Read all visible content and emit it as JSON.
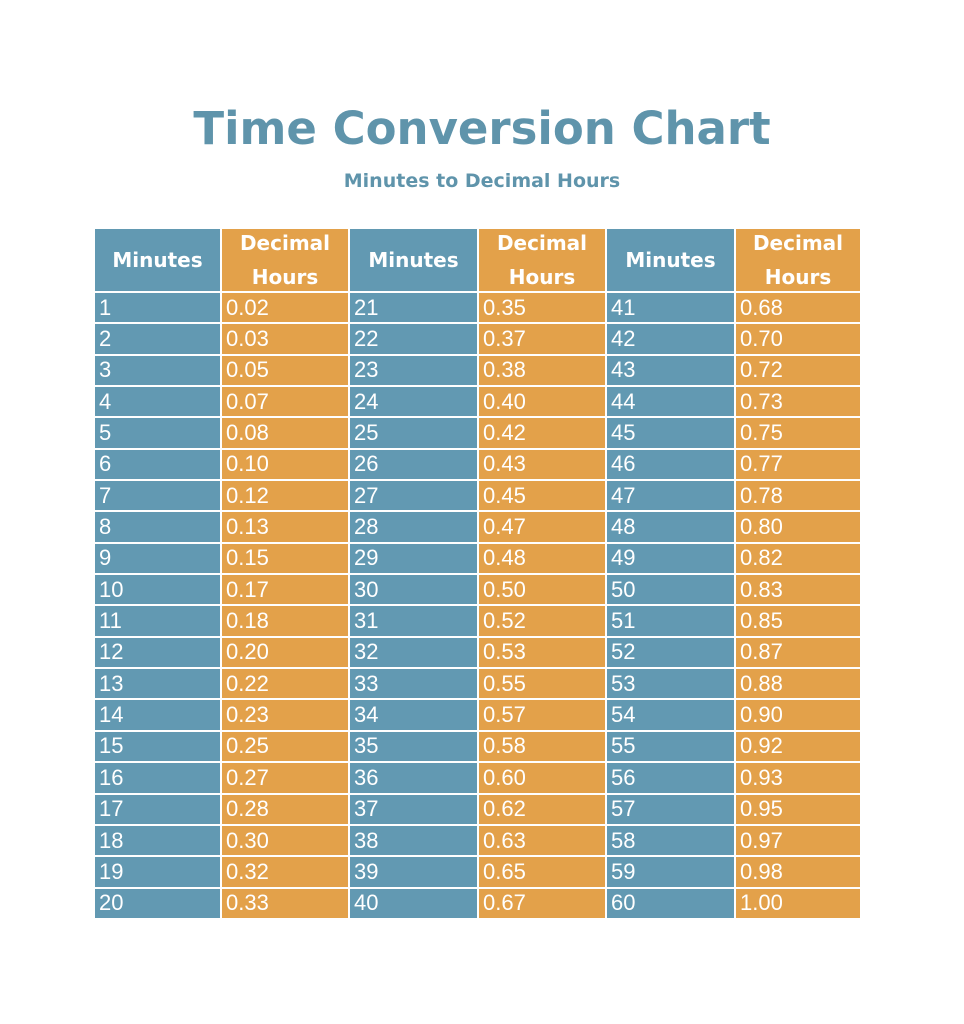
{
  "title": "Time Conversion Chart",
  "subtitle": "Minutes to Decimal Hours",
  "colors": {
    "title": "#5f94ab",
    "minutes_column": "#6299b2",
    "decimal_column": "#e3a14a",
    "text_on_cells": "#ffffff"
  },
  "headers": {
    "minutes": "Minutes",
    "decimal_line1": "Decimal",
    "decimal_line2": "Hours"
  },
  "table": [
    {
      "minutes": "1",
      "hours": "0.02"
    },
    {
      "minutes": "2",
      "hours": "0.03"
    },
    {
      "minutes": "3",
      "hours": "0.05"
    },
    {
      "minutes": "4",
      "hours": "0.07"
    },
    {
      "minutes": "5",
      "hours": "0.08"
    },
    {
      "minutes": "6",
      "hours": "0.10"
    },
    {
      "minutes": "7",
      "hours": "0.12"
    },
    {
      "minutes": "8",
      "hours": "0.13"
    },
    {
      "minutes": "9",
      "hours": "0.15"
    },
    {
      "minutes": "10",
      "hours": "0.17"
    },
    {
      "minutes": "11",
      "hours": "0.18"
    },
    {
      "minutes": "12",
      "hours": "0.20"
    },
    {
      "minutes": "13",
      "hours": "0.22"
    },
    {
      "minutes": "14",
      "hours": "0.23"
    },
    {
      "minutes": "15",
      "hours": "0.25"
    },
    {
      "minutes": "16",
      "hours": "0.27"
    },
    {
      "minutes": "17",
      "hours": "0.28"
    },
    {
      "minutes": "18",
      "hours": "0.30"
    },
    {
      "minutes": "19",
      "hours": "0.32"
    },
    {
      "minutes": "20",
      "hours": "0.33"
    },
    {
      "minutes": "21",
      "hours": "0.35"
    },
    {
      "minutes": "22",
      "hours": "0.37"
    },
    {
      "minutes": "23",
      "hours": "0.38"
    },
    {
      "minutes": "24",
      "hours": "0.40"
    },
    {
      "minutes": "25",
      "hours": "0.42"
    },
    {
      "minutes": "26",
      "hours": "0.43"
    },
    {
      "minutes": "27",
      "hours": "0.45"
    },
    {
      "minutes": "28",
      "hours": "0.47"
    },
    {
      "minutes": "29",
      "hours": "0.48"
    },
    {
      "minutes": "30",
      "hours": "0.50"
    },
    {
      "minutes": "31",
      "hours": "0.52"
    },
    {
      "minutes": "32",
      "hours": "0.53"
    },
    {
      "minutes": "33",
      "hours": "0.55"
    },
    {
      "minutes": "34",
      "hours": "0.57"
    },
    {
      "minutes": "35",
      "hours": "0.58"
    },
    {
      "minutes": "36",
      "hours": "0.60"
    },
    {
      "minutes": "37",
      "hours": "0.62"
    },
    {
      "minutes": "38",
      "hours": "0.63"
    },
    {
      "minutes": "39",
      "hours": "0.65"
    },
    {
      "minutes": "40",
      "hours": "0.67"
    },
    {
      "minutes": "41",
      "hours": "0.68"
    },
    {
      "minutes": "42",
      "hours": "0.70"
    },
    {
      "minutes": "43",
      "hours": "0.72"
    },
    {
      "minutes": "44",
      "hours": "0.73"
    },
    {
      "minutes": "45",
      "hours": "0.75"
    },
    {
      "minutes": "46",
      "hours": "0.77"
    },
    {
      "minutes": "47",
      "hours": "0.78"
    },
    {
      "minutes": "48",
      "hours": "0.80"
    },
    {
      "minutes": "49",
      "hours": "0.82"
    },
    {
      "minutes": "50",
      "hours": "0.83"
    },
    {
      "minutes": "51",
      "hours": "0.85"
    },
    {
      "minutes": "52",
      "hours": "0.87"
    },
    {
      "minutes": "53",
      "hours": "0.88"
    },
    {
      "minutes": "54",
      "hours": "0.90"
    },
    {
      "minutes": "55",
      "hours": "0.92"
    },
    {
      "minutes": "56",
      "hours": "0.93"
    },
    {
      "minutes": "57",
      "hours": "0.95"
    },
    {
      "minutes": "58",
      "hours": "0.97"
    },
    {
      "minutes": "59",
      "hours": "0.98"
    },
    {
      "minutes": "60",
      "hours": "1.00"
    }
  ]
}
